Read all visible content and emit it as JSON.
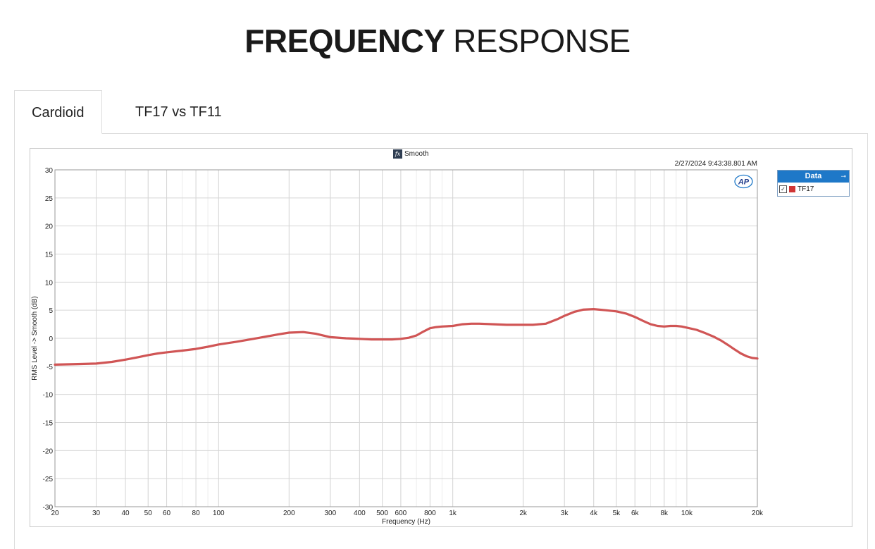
{
  "page": {
    "title_bold": "FREQUENCY",
    "title_light": "RESPONSE"
  },
  "tabs": [
    {
      "label": "Cardioid",
      "active": true
    },
    {
      "label": "TF17 vs TF11",
      "active": false
    }
  ],
  "graph": {
    "function_label": "Smooth",
    "fx_icon_text": "fx",
    "timestamp": "2/27/2024 9:43:38.801 AM",
    "logo_text": "AP"
  },
  "legend": {
    "header": "Data",
    "pin_icon": "pin-icon",
    "items": [
      {
        "label": "TF17",
        "checked": true,
        "check_glyph": "✓",
        "color": "#d03535"
      }
    ]
  },
  "chart_data": {
    "type": "line",
    "xlabel": "Frequency (Hz)",
    "ylabel": "RMS Level -> Smooth (dB)",
    "xscale": "log",
    "xlim": [
      20,
      20000
    ],
    "ylim": [
      -30,
      30
    ],
    "grid": true,
    "legend_placement": "right",
    "x_ticks": [
      {
        "value": 20,
        "label": "20"
      },
      {
        "value": 30,
        "label": "30"
      },
      {
        "value": 40,
        "label": "40"
      },
      {
        "value": 50,
        "label": "50"
      },
      {
        "value": 60,
        "label": "60"
      },
      {
        "value": 80,
        "label": "80"
      },
      {
        "value": 100,
        "label": "100"
      },
      {
        "value": 200,
        "label": "200"
      },
      {
        "value": 300,
        "label": "300"
      },
      {
        "value": 400,
        "label": "400"
      },
      {
        "value": 500,
        "label": "500"
      },
      {
        "value": 600,
        "label": "600"
      },
      {
        "value": 800,
        "label": "800"
      },
      {
        "value": 1000,
        "label": "1k"
      },
      {
        "value": 2000,
        "label": "2k"
      },
      {
        "value": 3000,
        "label": "3k"
      },
      {
        "value": 4000,
        "label": "4k"
      },
      {
        "value": 5000,
        "label": "5k"
      },
      {
        "value": 6000,
        "label": "6k"
      },
      {
        "value": 8000,
        "label": "8k"
      },
      {
        "value": 10000,
        "label": "10k"
      },
      {
        "value": 20000,
        "label": "20k"
      }
    ],
    "y_ticks": [
      30,
      25,
      20,
      15,
      10,
      5,
      0,
      -5,
      -10,
      -15,
      -20,
      -25,
      -30
    ],
    "series": [
      {
        "name": "TF17",
        "color": "#d05555",
        "points": [
          [
            20,
            -4.7
          ],
          [
            25,
            -4.6
          ],
          [
            30,
            -4.5
          ],
          [
            35,
            -4.2
          ],
          [
            40,
            -3.8
          ],
          [
            45,
            -3.4
          ],
          [
            50,
            -3.0
          ],
          [
            55,
            -2.7
          ],
          [
            60,
            -2.5
          ],
          [
            70,
            -2.2
          ],
          [
            80,
            -1.9
          ],
          [
            90,
            -1.5
          ],
          [
            100,
            -1.1
          ],
          [
            120,
            -0.6
          ],
          [
            150,
            0.1
          ],
          [
            180,
            0.7
          ],
          [
            200,
            1.0
          ],
          [
            230,
            1.1
          ],
          [
            260,
            0.8
          ],
          [
            300,
            0.2
          ],
          [
            350,
            0.0
          ],
          [
            400,
            -0.1
          ],
          [
            450,
            -0.2
          ],
          [
            500,
            -0.2
          ],
          [
            550,
            -0.2
          ],
          [
            600,
            -0.1
          ],
          [
            650,
            0.1
          ],
          [
            700,
            0.5
          ],
          [
            750,
            1.2
          ],
          [
            800,
            1.8
          ],
          [
            850,
            2.0
          ],
          [
            900,
            2.1
          ],
          [
            1000,
            2.2
          ],
          [
            1100,
            2.5
          ],
          [
            1200,
            2.6
          ],
          [
            1300,
            2.6
          ],
          [
            1500,
            2.5
          ],
          [
            1700,
            2.4
          ],
          [
            2000,
            2.4
          ],
          [
            2200,
            2.4
          ],
          [
            2500,
            2.6
          ],
          [
            2800,
            3.4
          ],
          [
            3000,
            4.0
          ],
          [
            3300,
            4.7
          ],
          [
            3600,
            5.1
          ],
          [
            4000,
            5.2
          ],
          [
            4500,
            5.0
          ],
          [
            5000,
            4.8
          ],
          [
            5500,
            4.4
          ],
          [
            6000,
            3.8
          ],
          [
            6500,
            3.1
          ],
          [
            7000,
            2.5
          ],
          [
            7500,
            2.2
          ],
          [
            8000,
            2.1
          ],
          [
            8500,
            2.2
          ],
          [
            9000,
            2.2
          ],
          [
            9500,
            2.1
          ],
          [
            10000,
            1.9
          ],
          [
            11000,
            1.5
          ],
          [
            12000,
            0.9
          ],
          [
            13000,
            0.3
          ],
          [
            14000,
            -0.4
          ],
          [
            15000,
            -1.2
          ],
          [
            16000,
            -2.0
          ],
          [
            17000,
            -2.7
          ],
          [
            18000,
            -3.2
          ],
          [
            19000,
            -3.5
          ],
          [
            20000,
            -3.6
          ]
        ]
      }
    ]
  }
}
